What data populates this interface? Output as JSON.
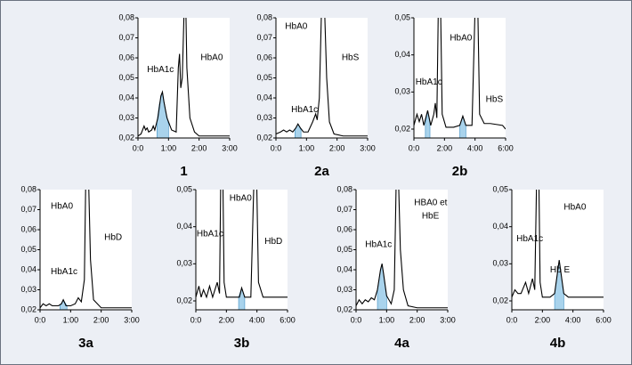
{
  "chart_data": [
    {
      "type": "line",
      "label": "1",
      "xlim": [
        0,
        3
      ],
      "ylim": [
        0.02,
        0.08
      ],
      "xticks": [
        {
          "value": 0,
          "label": "0:0"
        },
        {
          "value": 1,
          "label": "1:00"
        },
        {
          "value": 2,
          "label": "2:00"
        },
        {
          "value": 3,
          "label": "3:00"
        }
      ],
      "yticks": [
        {
          "value": 0.02,
          "label": "0,02"
        },
        {
          "value": 0.03,
          "label": "0,03"
        },
        {
          "value": 0.04,
          "label": "0,04"
        },
        {
          "value": 0.05,
          "label": "0,05"
        },
        {
          "value": 0.06,
          "label": "0,06"
        },
        {
          "value": 0.07,
          "label": "0,07"
        },
        {
          "value": 0.08,
          "label": "0,08"
        }
      ],
      "series": [
        {
          "color": "#000000",
          "x": [
            0,
            0.1,
            0.2,
            0.25,
            0.3,
            0.35,
            0.45,
            0.5,
            0.55,
            0.65,
            0.75,
            0.8,
            0.85,
            0.95,
            1.1,
            1.25,
            1.32,
            1.36,
            1.4,
            1.45,
            1.52,
            1.56,
            1.6,
            1.7,
            1.85,
            2.0,
            2.5,
            3.0
          ],
          "values": [
            0.021,
            0.022,
            0.026,
            0.024,
            0.025,
            0.023,
            0.024,
            0.026,
            0.024,
            0.03,
            0.041,
            0.043,
            0.038,
            0.03,
            0.024,
            0.023,
            0.055,
            0.062,
            0.045,
            0.05,
            0.09,
            0.09,
            0.055,
            0.03,
            0.023,
            0.021,
            0.021,
            0.021
          ]
        }
      ],
      "fills": [
        {
          "color": "#a9d3ec",
          "x": [
            0.62,
            0.7,
            0.8,
            0.9,
            1.0
          ],
          "values": [
            0.028,
            0.037,
            0.043,
            0.034,
            0.027
          ]
        }
      ],
      "annotations": [
        {
          "text": "HbA1c",
          "x": 0.3,
          "y": 0.054
        },
        {
          "text": "HbA0",
          "x": 2.05,
          "y": 0.06
        }
      ]
    },
    {
      "type": "line",
      "label": "2a",
      "xlim": [
        0,
        3
      ],
      "ylim": [
        0.02,
        0.08
      ],
      "xticks": [
        {
          "value": 0,
          "label": "0:0"
        },
        {
          "value": 1,
          "label": "1:00"
        },
        {
          "value": 2,
          "label": "2:00"
        },
        {
          "value": 3,
          "label": "3:00"
        }
      ],
      "yticks": [
        {
          "value": 0.02,
          "label": "0,02"
        },
        {
          "value": 0.03,
          "label": "0,03"
        },
        {
          "value": 0.04,
          "label": "0,04"
        },
        {
          "value": 0.05,
          "label": "0,05"
        },
        {
          "value": 0.06,
          "label": "0,06"
        },
        {
          "value": 0.07,
          "label": "0,07"
        },
        {
          "value": 0.08,
          "label": "0,08"
        }
      ],
      "series": [
        {
          "color": "#000000",
          "x": [
            0,
            0.15,
            0.25,
            0.35,
            0.45,
            0.55,
            0.65,
            0.72,
            0.8,
            0.9,
            1.05,
            1.2,
            1.3,
            1.35,
            1.42,
            1.5,
            1.58,
            1.66,
            1.75,
            1.9,
            2.2,
            3.0
          ],
          "values": [
            0.022,
            0.023,
            0.024,
            0.023,
            0.024,
            0.023,
            0.025,
            0.027,
            0.025,
            0.023,
            0.023,
            0.028,
            0.032,
            0.029,
            0.04,
            0.09,
            0.09,
            0.05,
            0.028,
            0.022,
            0.021,
            0.021
          ]
        }
      ],
      "fills": [
        {
          "color": "#a9d3ec",
          "x": [
            0.62,
            0.72,
            0.82
          ],
          "values": [
            0.024,
            0.027,
            0.024
          ]
        }
      ],
      "annotations": [
        {
          "text": "HbA0",
          "x": 0.3,
          "y": 0.0756
        },
        {
          "text": "HbS",
          "x": 2.15,
          "y": 0.06
        },
        {
          "text": "HbA1c",
          "x": 0.5,
          "y": 0.034
        }
      ]
    },
    {
      "type": "line",
      "label": "2b",
      "xlim": [
        0,
        6
      ],
      "ylim": [
        0.0176,
        0.05
      ],
      "xticks": [
        {
          "value": 0,
          "label": "0:0"
        },
        {
          "value": 2,
          "label": "2:00"
        },
        {
          "value": 4,
          "label": "4:00"
        },
        {
          "value": 6,
          "label": "6:00"
        }
      ],
      "yticks": [
        {
          "value": 0.02,
          "label": "0,02"
        },
        {
          "value": 0.03,
          "label": "0,03"
        },
        {
          "value": 0.04,
          "label": "0,04"
        },
        {
          "value": 0.05,
          "label": "0,05"
        }
      ],
      "series": [
        {
          "color": "#000000",
          "x": [
            0,
            0.2,
            0.35,
            0.5,
            0.65,
            0.9,
            1.1,
            1.3,
            1.4,
            1.5,
            1.62,
            1.72,
            1.85,
            2.1,
            2.6,
            3.0,
            3.2,
            3.4,
            3.8,
            4.05,
            4.15,
            4.3,
            4.6,
            5.0,
            5.8,
            6.0
          ],
          "values": [
            0.021,
            0.024,
            0.022,
            0.024,
            0.021,
            0.025,
            0.021,
            0.024,
            0.027,
            0.023,
            0.06,
            0.06,
            0.024,
            0.0205,
            0.0205,
            0.021,
            0.0235,
            0.021,
            0.021,
            0.06,
            0.06,
            0.024,
            0.0215,
            0.0215,
            0.021,
            0.02
          ]
        }
      ],
      "fills": [
        {
          "color": "#a9d3ec",
          "x": [
            0.75,
            0.9,
            1.05
          ],
          "values": [
            0.0215,
            0.025,
            0.0215
          ]
        },
        {
          "color": "#a9d3ec",
          "x": [
            3.0,
            3.2,
            3.4
          ],
          "values": [
            0.021,
            0.0235,
            0.021
          ]
        }
      ],
      "annotations": [
        {
          "text": "HbA0",
          "x": 2.35,
          "y": 0.0445
        },
        {
          "text": "HbA1c",
          "x": 0.1,
          "y": 0.0326
        },
        {
          "text": "HbS",
          "x": 4.7,
          "y": 0.0279
        }
      ]
    },
    {
      "type": "line",
      "label": "3a",
      "xlim": [
        0,
        3
      ],
      "ylim": [
        0.02,
        0.08
      ],
      "xticks": [
        {
          "value": 0,
          "label": "0:0"
        },
        {
          "value": 1,
          "label": "1:00"
        },
        {
          "value": 2,
          "label": "2:00"
        },
        {
          "value": 3,
          "label": "3:00"
        }
      ],
      "yticks": [
        {
          "value": 0.02,
          "label": "0,02"
        },
        {
          "value": 0.03,
          "label": "0,03"
        },
        {
          "value": 0.04,
          "label": "0,04"
        },
        {
          "value": 0.05,
          "label": "0,05"
        },
        {
          "value": 0.06,
          "label": "0,06"
        },
        {
          "value": 0.07,
          "label": "0,07"
        },
        {
          "value": 0.08,
          "label": "0,08"
        }
      ],
      "series": [
        {
          "color": "#000000",
          "x": [
            0,
            0.1,
            0.2,
            0.3,
            0.4,
            0.5,
            0.6,
            0.7,
            0.76,
            0.85,
            1.0,
            1.15,
            1.25,
            1.35,
            1.45,
            1.5,
            1.58,
            1.65,
            1.75,
            2.0,
            3.0
          ],
          "values": [
            0.021,
            0.023,
            0.022,
            0.023,
            0.022,
            0.022,
            0.022,
            0.023,
            0.025,
            0.022,
            0.022,
            0.023,
            0.026,
            0.024,
            0.035,
            0.09,
            0.09,
            0.045,
            0.025,
            0.021,
            0.021
          ]
        }
      ],
      "fills": [
        {
          "color": "#a9d3ec",
          "x": [
            0.65,
            0.76,
            0.88
          ],
          "values": [
            0.022,
            0.025,
            0.022
          ]
        }
      ],
      "annotations": [
        {
          "text": "HbA0",
          "x": 0.35,
          "y": 0.0716
        },
        {
          "text": "HbA1c",
          "x": 0.35,
          "y": 0.039
        },
        {
          "text": "HbD",
          "x": 2.1,
          "y": 0.056
        }
      ]
    },
    {
      "type": "line",
      "label": "3b",
      "xlim": [
        0,
        6
      ],
      "ylim": [
        0.0176,
        0.05
      ],
      "xticks": [
        {
          "value": 0,
          "label": "0:0"
        },
        {
          "value": 2,
          "label": "2:00"
        },
        {
          "value": 4,
          "label": "4:00"
        },
        {
          "value": 6,
          "label": "6:00"
        }
      ],
      "yticks": [
        {
          "value": 0.02,
          "label": "0,02"
        },
        {
          "value": 0.03,
          "label": "0,03"
        },
        {
          "value": 0.04,
          "label": "0,04"
        },
        {
          "value": 0.05,
          "label": "0,05"
        }
      ],
      "series": [
        {
          "color": "#000000",
          "x": [
            0,
            0.2,
            0.35,
            0.5,
            0.7,
            0.9,
            1.1,
            1.4,
            1.55,
            1.65,
            1.75,
            1.85,
            2.0,
            2.5,
            2.85,
            3.0,
            3.2,
            3.6,
            3.85,
            3.95,
            4.1,
            4.4,
            5.0,
            6.0
          ],
          "values": [
            0.021,
            0.024,
            0.021,
            0.023,
            0.021,
            0.024,
            0.021,
            0.025,
            0.022,
            0.06,
            0.06,
            0.025,
            0.021,
            0.021,
            0.021,
            0.0235,
            0.021,
            0.021,
            0.06,
            0.06,
            0.025,
            0.021,
            0.021,
            0.021
          ]
        }
      ],
      "fills": [
        {
          "color": "#a9d3ec",
          "x": [
            2.8,
            3.0,
            3.2
          ],
          "values": [
            0.021,
            0.0235,
            0.021
          ]
        }
      ],
      "annotations": [
        {
          "text": "HbA0",
          "x": 2.2,
          "y": 0.0476
        },
        {
          "text": "HbA1c",
          "x": 0.05,
          "y": 0.038
        },
        {
          "text": "HbD",
          "x": 4.5,
          "y": 0.036
        }
      ]
    },
    {
      "type": "line",
      "label": "4a",
      "xlim": [
        0,
        3
      ],
      "ylim": [
        0.02,
        0.08
      ],
      "xticks": [
        {
          "value": 0,
          "label": "0:0"
        },
        {
          "value": 1,
          "label": "1:00"
        },
        {
          "value": 2,
          "label": "2:00"
        },
        {
          "value": 3,
          "label": "3:00"
        }
      ],
      "yticks": [
        {
          "value": 0.02,
          "label": "0,02"
        },
        {
          "value": 0.03,
          "label": "0,03"
        },
        {
          "value": 0.04,
          "label": "0,04"
        },
        {
          "value": 0.05,
          "label": "0,05"
        },
        {
          "value": 0.06,
          "label": "0,06"
        },
        {
          "value": 0.07,
          "label": "0,07"
        },
        {
          "value": 0.08,
          "label": "0,08"
        }
      ],
      "series": [
        {
          "color": "#000000",
          "x": [
            0,
            0.1,
            0.2,
            0.3,
            0.4,
            0.5,
            0.6,
            0.7,
            0.8,
            0.85,
            0.9,
            1.0,
            1.15,
            1.25,
            1.32,
            1.38,
            1.45,
            1.55,
            1.7,
            2.0,
            3.0
          ],
          "values": [
            0.022,
            0.025,
            0.023,
            0.025,
            0.024,
            0.026,
            0.025,
            0.03,
            0.04,
            0.043,
            0.038,
            0.027,
            0.023,
            0.03,
            0.09,
            0.09,
            0.05,
            0.03,
            0.022,
            0.021,
            0.021
          ]
        }
      ],
      "fills": [
        {
          "color": "#a9d3ec",
          "x": [
            0.7,
            0.8,
            0.85,
            0.9,
            1.0
          ],
          "values": [
            0.03,
            0.04,
            0.043,
            0.038,
            0.027
          ]
        }
      ],
      "annotations": [
        {
          "text": "HBA0 et",
          "x": 1.9,
          "y": 0.0733
        },
        {
          "text": "HbE",
          "x": 2.15,
          "y": 0.0667
        },
        {
          "text": "HbA1c",
          "x": 0.3,
          "y": 0.0524
        }
      ]
    },
    {
      "type": "line",
      "label": "4b",
      "xlim": [
        0,
        6
      ],
      "ylim": [
        0.0176,
        0.05
      ],
      "xticks": [
        {
          "value": 0,
          "label": "0:0"
        },
        {
          "value": 2,
          "label": "2:00"
        },
        {
          "value": 4,
          "label": "4:00"
        },
        {
          "value": 6,
          "label": "6:00"
        }
      ],
      "yticks": [
        {
          "value": 0.02,
          "label": "0,02"
        },
        {
          "value": 0.03,
          "label": "0,03"
        },
        {
          "value": 0.04,
          "label": "0,04"
        },
        {
          "value": 0.05,
          "label": "0,05"
        }
      ],
      "series": [
        {
          "color": "#000000",
          "x": [
            0,
            0.2,
            0.4,
            0.6,
            0.9,
            1.1,
            1.35,
            1.5,
            1.65,
            1.75,
            1.85,
            2.0,
            2.5,
            2.8,
            3.1,
            3.4,
            3.7,
            4.5,
            6.0
          ],
          "values": [
            0.021,
            0.023,
            0.022,
            0.022,
            0.025,
            0.022,
            0.026,
            0.023,
            0.06,
            0.06,
            0.025,
            0.021,
            0.021,
            0.022,
            0.031,
            0.022,
            0.021,
            0.021,
            0.021
          ]
        }
      ],
      "fills": [
        {
          "color": "#a9d3ec",
          "x": [
            2.8,
            3.1,
            3.4
          ],
          "values": [
            0.022,
            0.031,
            0.022
          ]
        }
      ],
      "annotations": [
        {
          "text": "HbA0",
          "x": 3.4,
          "y": 0.0452
        },
        {
          "text": "HbA1c",
          "x": 0.3,
          "y": 0.0367
        },
        {
          "text": "Hb E",
          "x": 2.5,
          "y": 0.0283
        }
      ]
    }
  ]
}
